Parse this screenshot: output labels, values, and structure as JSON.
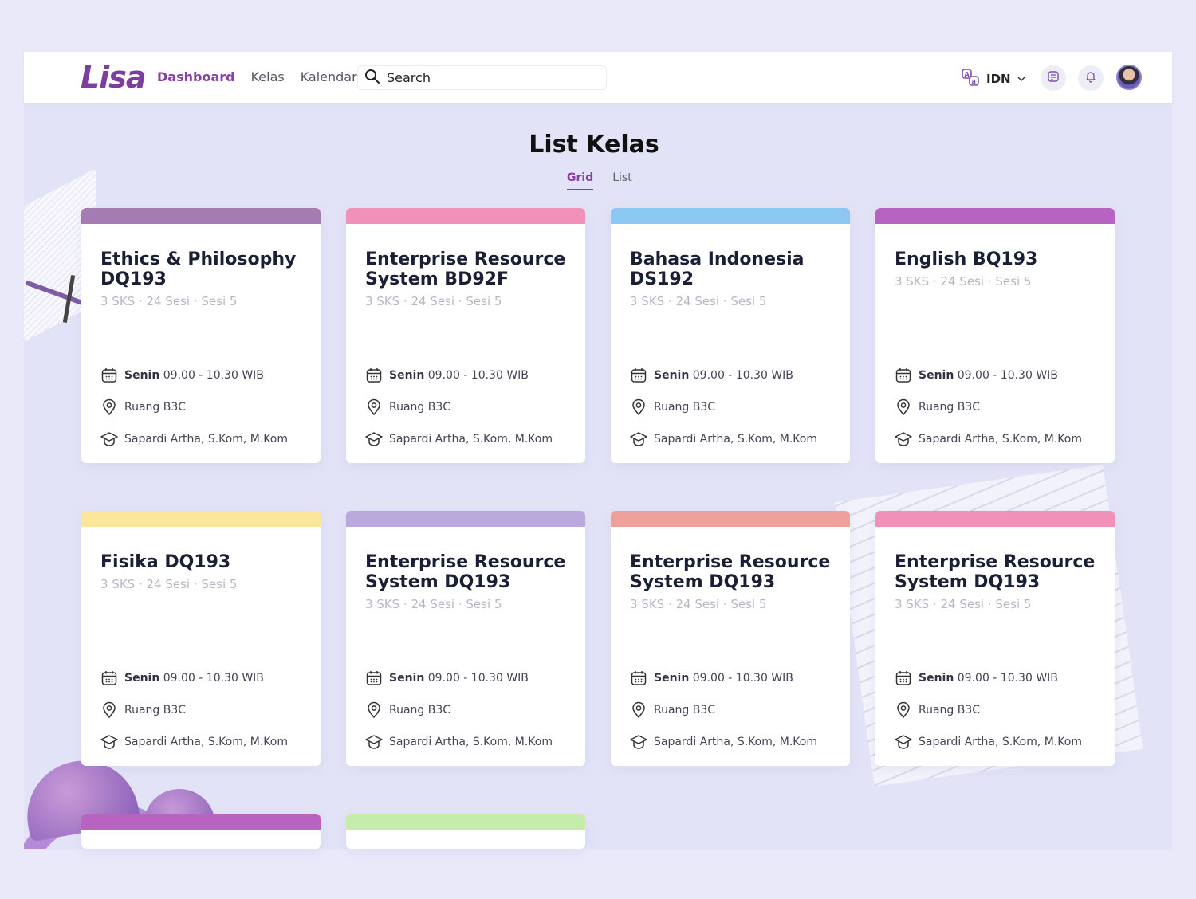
{
  "app": {
    "logo": "Lisa"
  },
  "nav": {
    "items": [
      {
        "label": "Dashboard",
        "active": true
      },
      {
        "label": "Kelas",
        "active": false
      },
      {
        "label": "Kalendar",
        "active": false
      }
    ]
  },
  "search": {
    "placeholder": "Search",
    "icon": "search-icon"
  },
  "header_right": {
    "language": "IDN",
    "language_icon": "translate-icon",
    "notes_icon": "notes-icon",
    "bell_icon": "bell-icon"
  },
  "page": {
    "title": "List Kelas",
    "tabs": [
      {
        "label": "Grid",
        "active": true
      },
      {
        "label": "List",
        "active": false
      }
    ]
  },
  "cards": [
    {
      "title_line1": "Ethics & Philosophy",
      "title_line2": "DQ193",
      "meta": "3 SKS · 24 Sesi · Sesi 5",
      "day": "Senin",
      "time": "09.00 - 10.30 WIB",
      "room": "Ruang B3C",
      "lecturer": "Sapardi Artha, S.Kom, M.Kom",
      "color": "#a57bb4"
    },
    {
      "title_line1": "Enterprise Resource",
      "title_line2": "System  BD92F",
      "meta": "3 SKS · 24 Sesi · Sesi 5",
      "day": "Senin",
      "time": "09.00 - 10.30 WIB",
      "room": "Ruang B3C",
      "lecturer": "Sapardi Artha, S.Kom, M.Kom",
      "color": "#f291b8"
    },
    {
      "title_line1": "Bahasa Indonesia",
      "title_line2": "DS192",
      "meta": "3 SKS · 24 Sesi · Sesi 5",
      "day": "Senin",
      "time": "09.00 - 10.30 WIB",
      "room": "Ruang B3C",
      "lecturer": "Sapardi Artha, S.Kom, M.Kom",
      "color": "#8cc6f2"
    },
    {
      "title_line1": "English  BQ193",
      "title_line2": "",
      "meta": "3 SKS · 24 Sesi · Sesi 5",
      "day": "Senin",
      "time": "09.00 - 10.30 WIB",
      "room": "Ruang B3C",
      "lecturer": "Sapardi Artha, S.Kom, M.Kom",
      "color": "#b763c2"
    },
    {
      "title_line1": "Fisika DQ193",
      "title_line2": "",
      "meta": "3 SKS · 24 Sesi · Sesi 5",
      "day": "Senin",
      "time": "09.00 - 10.30 WIB",
      "room": "Ruang B3C",
      "lecturer": "Sapardi Artha, S.Kom, M.Kom",
      "color": "#fce69a"
    },
    {
      "title_line1": "Enterprise Resource",
      "title_line2": "System  DQ193",
      "meta": "3 SKS · 24 Sesi · Sesi 5",
      "day": "Senin",
      "time": "09.00 - 10.30 WIB",
      "room": "Ruang B3C",
      "lecturer": "Sapardi Artha, S.Kom, M.Kom",
      "color": "#bba8dc"
    },
    {
      "title_line1": "Enterprise Resource",
      "title_line2": "System  DQ193",
      "meta": "3 SKS · 24 Sesi · Sesi 5",
      "day": "Senin",
      "time": "09.00 - 10.30 WIB",
      "room": "Ruang B3C",
      "lecturer": "Sapardi Artha, S.Kom, M.Kom",
      "color": "#f0a09a"
    },
    {
      "title_line1": "Enterprise Resource",
      "title_line2": "System  DQ193",
      "meta": "3 SKS · 24 Sesi · Sesi 5",
      "day": "Senin",
      "time": "09.00 - 10.30 WIB",
      "room": "Ruang B3C",
      "lecturer": "Sapardi Artha, S.Kom, M.Kom",
      "color": "#f291b8"
    }
  ],
  "partial_cards": [
    {
      "color": "#b763c2"
    },
    {
      "color": "#c5ecab"
    }
  ]
}
